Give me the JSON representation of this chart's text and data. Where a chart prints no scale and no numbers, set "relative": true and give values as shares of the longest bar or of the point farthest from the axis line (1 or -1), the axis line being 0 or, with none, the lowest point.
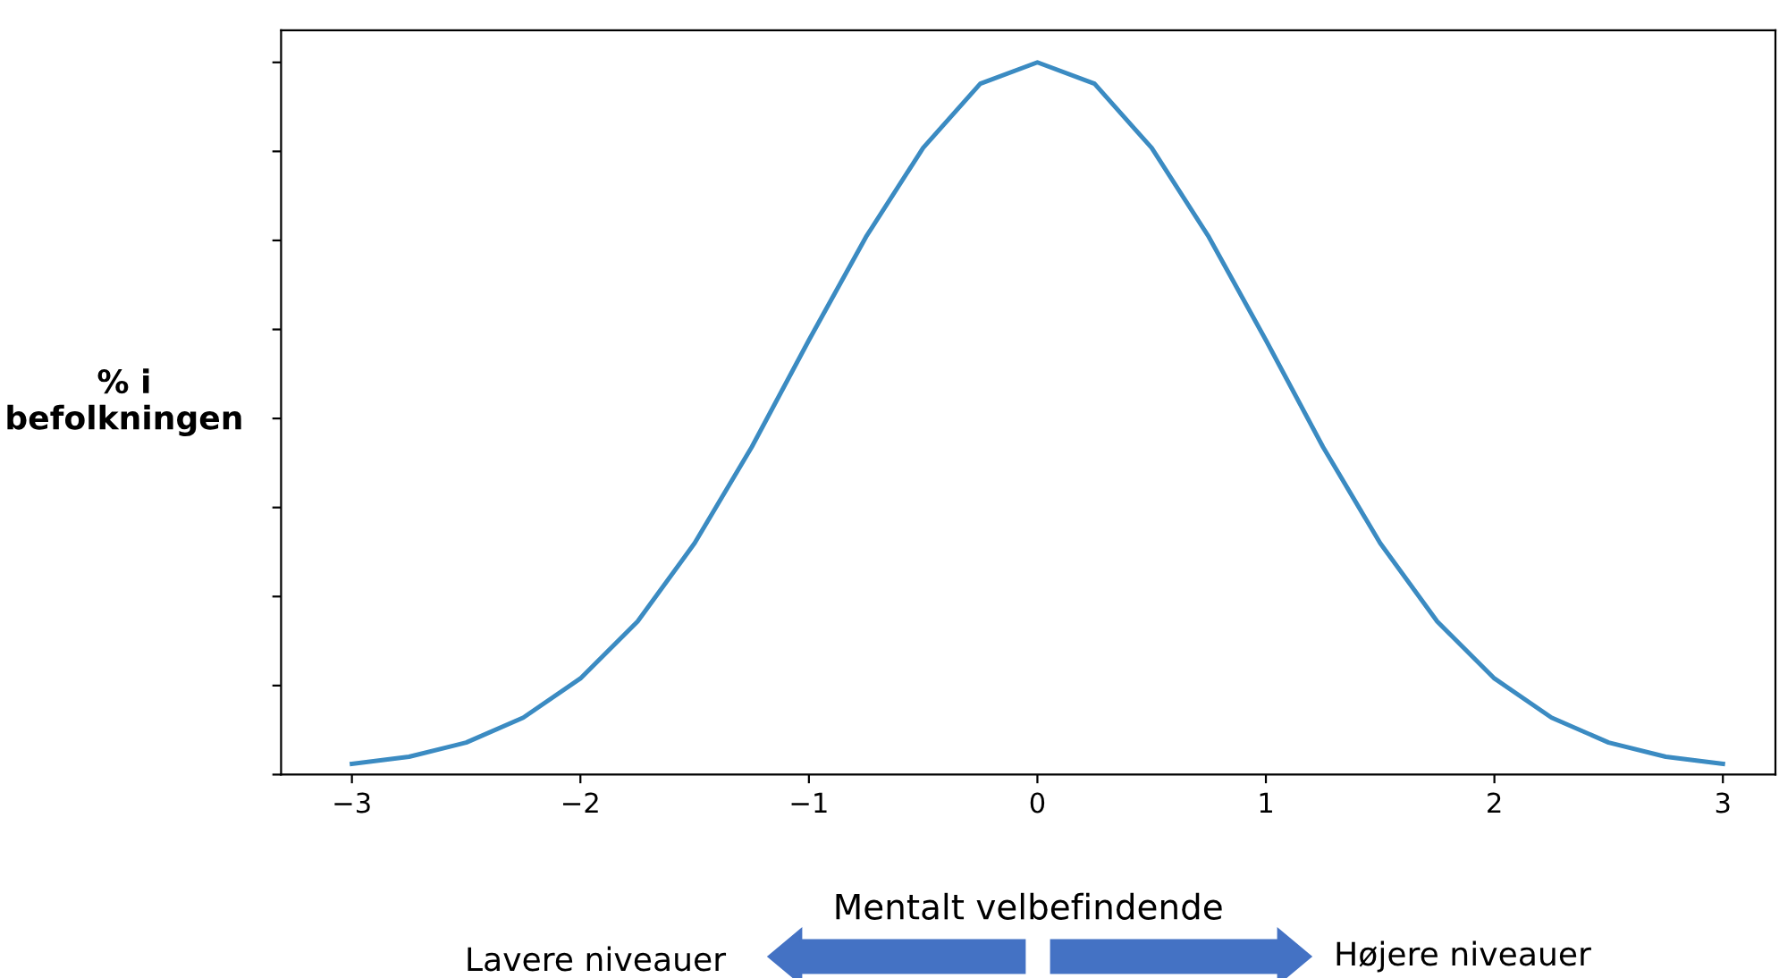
{
  "chart_data": {
    "type": "line",
    "relative": true,
    "xlabel": "Mentalt velbefindende",
    "ylabel": "% i\nbefolkningen",
    "x": [
      -3,
      -2.75,
      -2.5,
      -2.25,
      -2,
      -1.75,
      -1.5,
      -1.25,
      -1,
      -0.75,
      -0.5,
      -0.25,
      0,
      0.25,
      0.5,
      0.75,
      1,
      1.25,
      1.5,
      1.75,
      2,
      2.25,
      2.5,
      2.75,
      3
    ],
    "series": [
      {
        "color": "#3b8bc2",
        "values": [
          0.015,
          0.025,
          0.045,
          0.08,
          0.135,
          0.215,
          0.325,
          0.46,
          0.61,
          0.755,
          0.88,
          0.97,
          1,
          0.97,
          0.88,
          0.755,
          0.61,
          0.46,
          0.325,
          0.215,
          0.135,
          0.08,
          0.045,
          0.025,
          0.015
        ]
      }
    ],
    "xlim": [
      -3.31,
      3.23
    ],
    "xticks": [
      {
        "value": -3,
        "label": "−3"
      },
      {
        "value": -2,
        "label": "−2"
      },
      {
        "value": -1,
        "label": "−1"
      },
      0,
      1,
      2,
      3
    ],
    "tick_labels": "x",
    "grid": false,
    "legend": false,
    "marker": "none",
    "line_style": "solid",
    "annotations": [
      "Lavere niveauer",
      "Højere niveauer"
    ]
  }
}
